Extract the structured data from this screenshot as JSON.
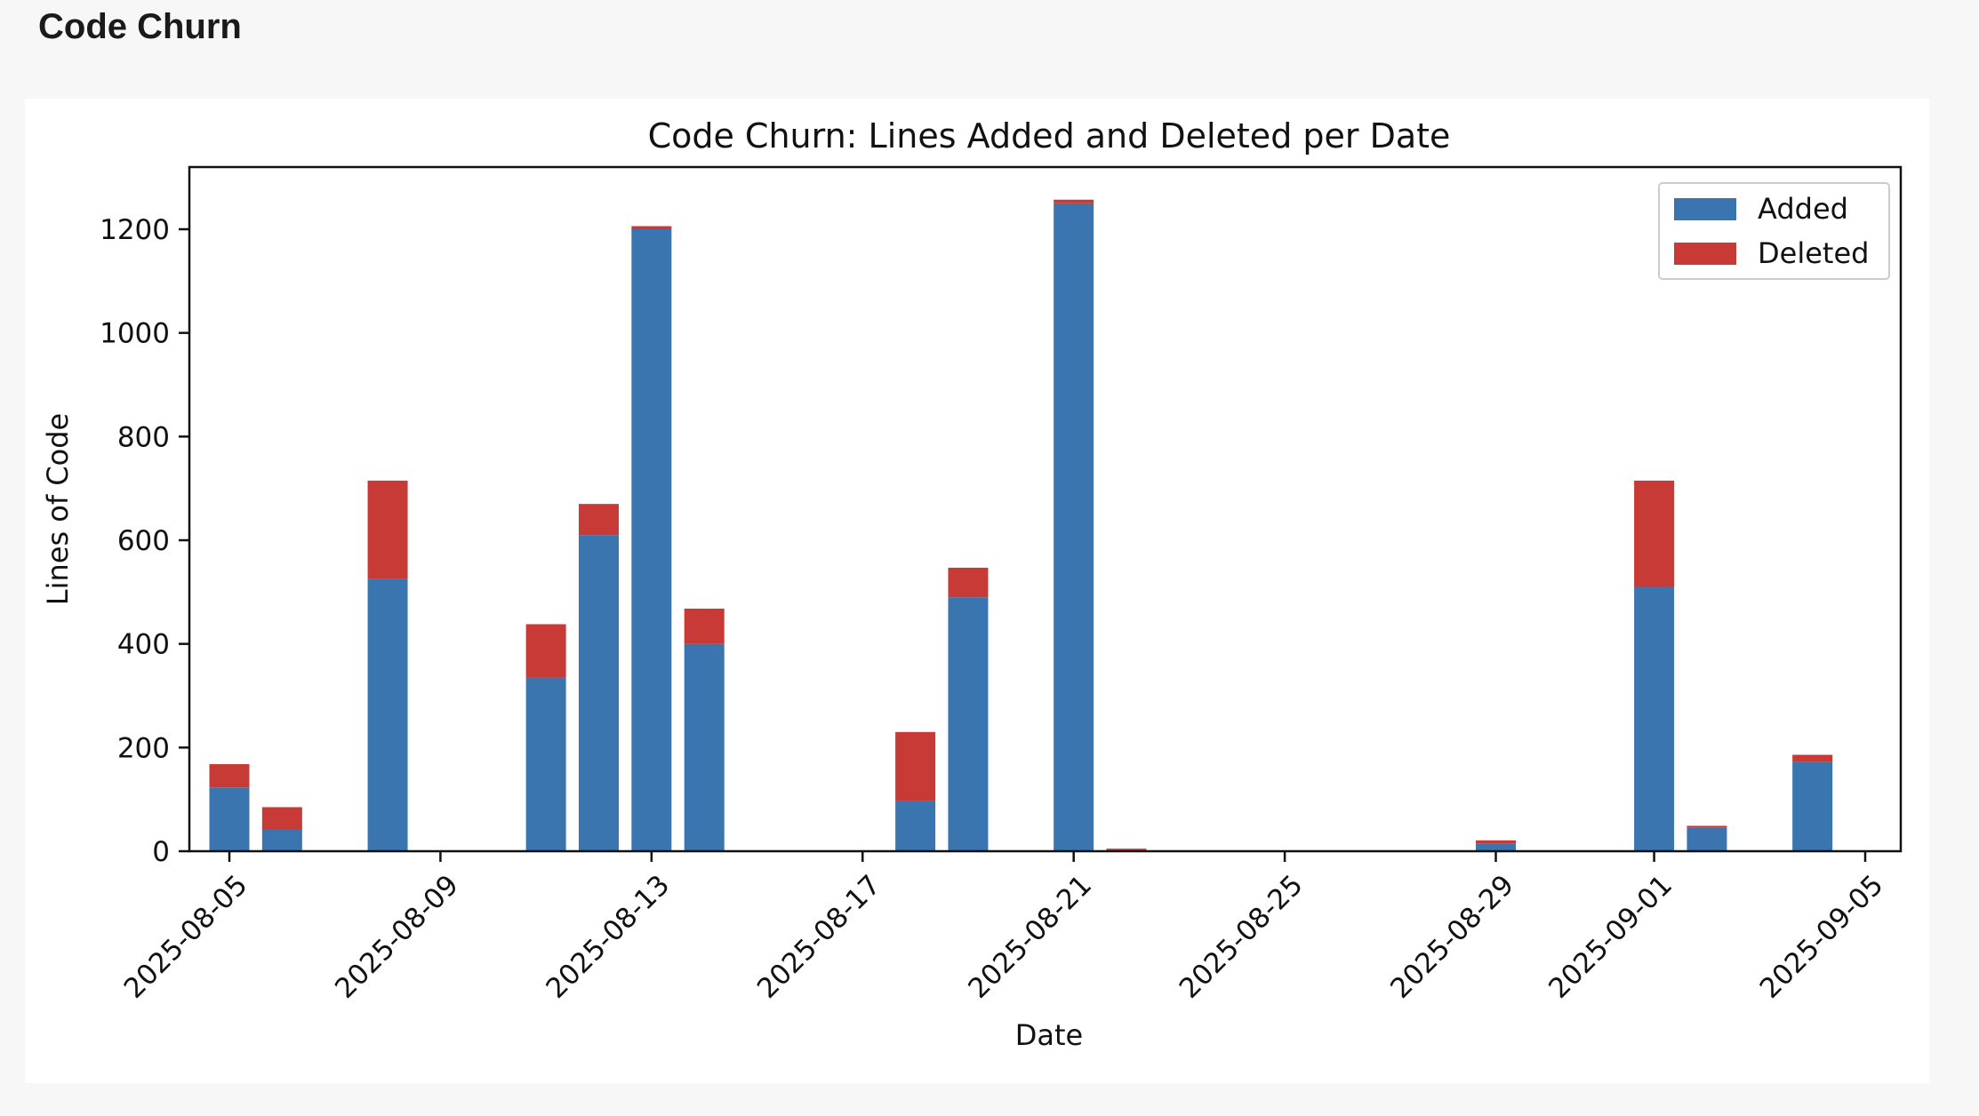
{
  "page": {
    "title": "Code Churn"
  },
  "chart_data": {
    "type": "bar",
    "stacked": true,
    "title": "Code Churn: Lines Added and Deleted per Date",
    "xlabel": "Date",
    "ylabel": "Lines of Code",
    "ylim": [
      0,
      1320
    ],
    "xlim": [
      "2025-08-03",
      "2025-09-05"
    ],
    "yticks": [
      0,
      200,
      400,
      600,
      800,
      1000,
      1200
    ],
    "xticks": [
      "2025-08-05",
      "2025-08-09",
      "2025-08-13",
      "2025-08-17",
      "2025-08-21",
      "2025-08-25",
      "2025-08-29",
      "2025-09-01",
      "2025-09-05"
    ],
    "legend_position": "top-right",
    "grid": false,
    "x": [
      "2025-08-05",
      "2025-08-06",
      "2025-08-08",
      "2025-08-11",
      "2025-08-12",
      "2025-08-13",
      "2025-08-14",
      "2025-08-18",
      "2025-08-19",
      "2025-08-21",
      "2025-08-22",
      "2025-08-29",
      "2025-09-01",
      "2025-09-02",
      "2025-09-04"
    ],
    "series": [
      {
        "name": "Added",
        "color": "#3a75b0",
        "values": [
          123,
          42,
          525,
          335,
          610,
          1200,
          400,
          97,
          490,
          1250,
          2,
          15,
          510,
          45,
          172
        ]
      },
      {
        "name": "Deleted",
        "color": "#c83a35",
        "values": [
          45,
          43,
          190,
          103,
          60,
          6,
          68,
          133,
          57,
          7,
          3,
          6,
          205,
          4,
          14
        ]
      }
    ]
  }
}
